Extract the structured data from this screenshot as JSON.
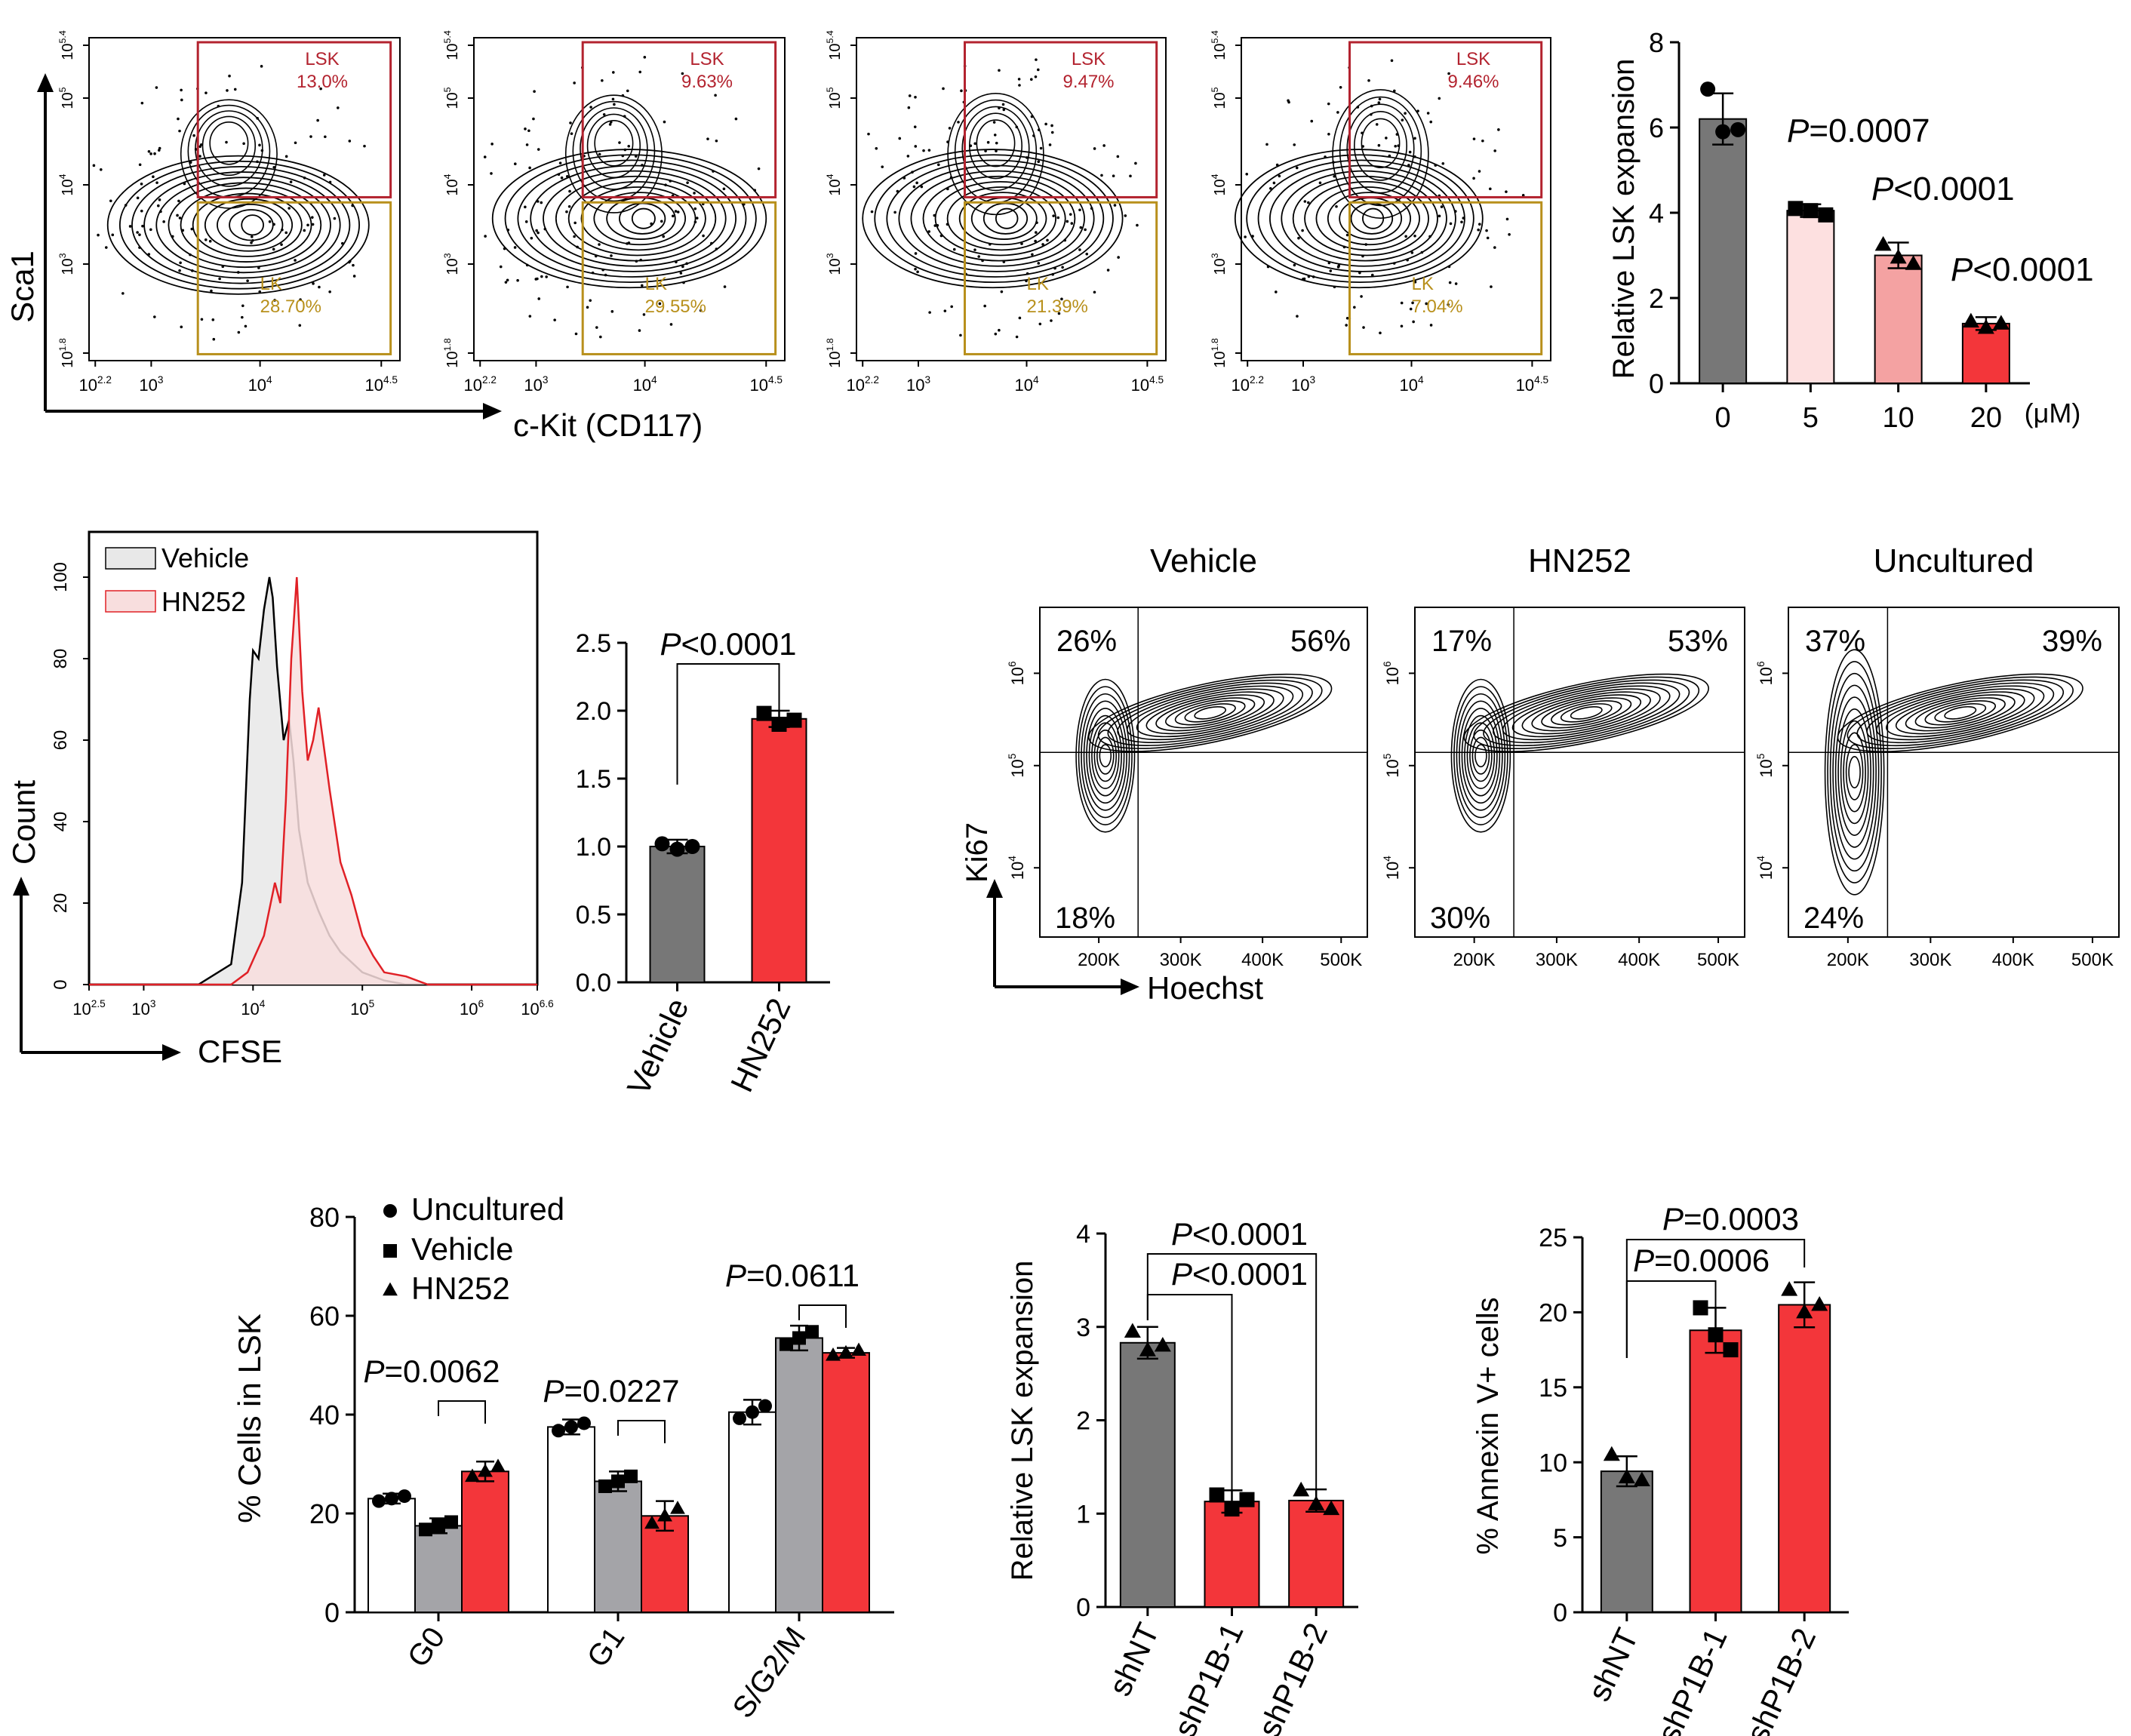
{
  "colors": {
    "lsk": "#b3232f",
    "lk": "#b8901c",
    "dark_grey": "#777777",
    "light_grey": "#a4a4a8",
    "pink_light": "#fde0e0",
    "pink_mid": "#f4a2a2",
    "red": "#f3363a",
    "hist_vehicle_fill": "#e8e8e8",
    "hist_hn252_fill": "#f8dede",
    "hist_hn252_line": "#e02026"
  },
  "flow_panels": {
    "y_axis": "Sca1",
    "x_axis": "c-Kit (CD117)",
    "y_ticks": [
      "10^5.4",
      "10^5",
      "10^4",
      "10^3",
      "10^1.8"
    ],
    "x_ticks": [
      "10^2.2",
      "10^3",
      "10^4",
      "10^4.5"
    ],
    "gate_lsk": "LSK",
    "gate_lk": "LK",
    "panels": [
      {
        "lsk": "13.0%",
        "lk": "28.70%"
      },
      {
        "lsk": "9.63%",
        "lk": "29.55%"
      },
      {
        "lsk": "9.47%",
        "lk": "21.39%"
      },
      {
        "lsk": "9.46%",
        "lk": "7.04%"
      }
    ]
  },
  "chart_data": [
    {
      "id": "lsk_dose",
      "type": "bar",
      "title": "",
      "ylabel": "Relative LSK expansion",
      "ylim": [
        0,
        8
      ],
      "yticks": [
        0,
        2,
        4,
        6,
        8
      ],
      "categories": [
        "0",
        "5",
        "10",
        "20"
      ],
      "unit_label": "(μM)",
      "values": [
        6.2,
        4.05,
        3.0,
        1.4
      ],
      "errors": [
        0.6,
        0.15,
        0.3,
        0.15
      ],
      "points": [
        [
          6.9,
          5.9,
          5.95
        ],
        [
          4.1,
          4.05,
          3.95
        ],
        [
          3.25,
          2.95,
          2.8
        ],
        [
          1.45,
          1.3,
          1.4
        ]
      ],
      "markers": [
        "circle",
        "square",
        "triangle",
        "triangle"
      ],
      "colors": [
        "#777777",
        "#fde0e0",
        "#f4a2a2",
        "#f3363a"
      ],
      "p_values": [
        "=0.0007",
        "<0.0001",
        "<0.0001"
      ],
      "p_letter": "P"
    },
    {
      "id": "cfse_hist",
      "type": "area",
      "ylabel": "Count",
      "xlabel": "CFSE",
      "ylim": [
        0,
        100
      ],
      "yticks": [
        0,
        20,
        40,
        60,
        80,
        100
      ],
      "xlim": [
        2.5,
        6.6
      ],
      "xtick_labels": [
        "10^2.5",
        "10^3",
        "10^4",
        "10^5",
        "10^6",
        "10^6.6"
      ],
      "legend": [
        "Vehicle",
        "HN252"
      ],
      "series": [
        {
          "name": "Vehicle",
          "x": [
            2.5,
            3.5,
            3.8,
            3.9,
            3.97,
            4.0,
            4.05,
            4.1,
            4.15,
            4.18,
            4.22,
            4.28,
            4.33,
            4.37,
            4.42,
            4.5,
            4.6,
            4.7,
            4.8,
            5.0,
            5.2,
            5.4,
            6.6
          ],
          "y": [
            0,
            0,
            5,
            25,
            70,
            82,
            80,
            92,
            100,
            95,
            78,
            60,
            65,
            55,
            38,
            25,
            18,
            12,
            8,
            3,
            1,
            0,
            0
          ]
        },
        {
          "name": "HN252",
          "x": [
            2.5,
            3.8,
            3.95,
            4.1,
            4.2,
            4.25,
            4.3,
            4.35,
            4.4,
            4.45,
            4.5,
            4.55,
            4.6,
            4.7,
            4.8,
            4.9,
            5.0,
            5.1,
            5.2,
            5.4,
            5.6,
            6.6
          ],
          "y": [
            0,
            0,
            3,
            12,
            25,
            20,
            45,
            80,
            100,
            72,
            55,
            60,
            68,
            48,
            30,
            22,
            12,
            7,
            3,
            2,
            0,
            0
          ]
        }
      ]
    },
    {
      "id": "cfse_ratio",
      "type": "bar",
      "ylim": [
        0,
        2.5
      ],
      "yticks": [
        "0.0",
        "0.5",
        "1.0",
        "1.5",
        "2.0",
        "2.5"
      ],
      "categories": [
        "Vehicle",
        "HN252"
      ],
      "values": [
        1.0,
        1.94
      ],
      "errors": [
        0.05,
        0.06
      ],
      "points": [
        [
          1.02,
          0.98,
          1.0
        ],
        [
          1.98,
          1.9,
          1.93
        ]
      ],
      "markers": [
        "circle",
        "square"
      ],
      "colors": [
        "#777777",
        "#f3363a"
      ],
      "p_values": [
        "<0.0001"
      ],
      "p_letter": "P"
    },
    {
      "id": "ki67_contours",
      "type": "scatter",
      "xlabel": "Hoechst",
      "ylabel": "Ki67",
      "xtick_labels": [
        "200K",
        "300K",
        "400K",
        "500K"
      ],
      "ytick_labels": [
        "10^6",
        "10^5",
        "10^4"
      ],
      "panels": [
        {
          "title": "Vehicle",
          "tl": "26%",
          "tr": "56%",
          "bl": "18%"
        },
        {
          "title": "HN252",
          "tl": "17%",
          "tr": "53%",
          "bl": "30%"
        },
        {
          "title": "Uncultured",
          "tl": "37%",
          "tr": "39%",
          "bl": "24%"
        }
      ]
    },
    {
      "id": "cell_cycle",
      "type": "bar",
      "ylabel": "% Cells in LSK",
      "ylim": [
        0,
        80
      ],
      "yticks": [
        0,
        20,
        40,
        60,
        80
      ],
      "categories": [
        "G0",
        "G1",
        "S/G2/M"
      ],
      "series": [
        {
          "name": "Uncultured",
          "marker": "circle",
          "color": "#ffffff",
          "values": [
            23,
            37.5,
            40.5
          ],
          "errors": [
            1.0,
            1.5,
            2.5
          ]
        },
        {
          "name": "Vehicle",
          "marker": "square",
          "color": "#a4a4a8",
          "values": [
            17.5,
            26.5,
            55.5
          ],
          "errors": [
            1.5,
            2.0,
            2.5
          ]
        },
        {
          "name": "HN252",
          "marker": "triangle",
          "color": "#f3363a",
          "values": [
            28.5,
            19.5,
            52.5
          ],
          "errors": [
            2.0,
            3.0,
            1.0
          ]
        }
      ],
      "p_values": [
        "=0.0062",
        "=0.0227",
        "=0.0611"
      ],
      "p_letter": "P"
    },
    {
      "id": "shp1b_lsk",
      "type": "bar",
      "ylabel": "Relative LSK expansion",
      "ylim": [
        0,
        4
      ],
      "yticks": [
        0,
        1,
        2,
        3,
        4
      ],
      "categories": [
        "shNT",
        "shP1B-1",
        "shP1B-2"
      ],
      "values": [
        2.83,
        1.13,
        1.14
      ],
      "errors": [
        0.17,
        0.12,
        0.12
      ],
      "points": [
        [
          2.95,
          2.75,
          2.8
        ],
        [
          1.2,
          1.05,
          1.15
        ],
        [
          1.25,
          1.1,
          1.05
        ]
      ],
      "markers": [
        "triangle",
        "square",
        "triangle"
      ],
      "colors": [
        "#777777",
        "#f3363a",
        "#f3363a"
      ],
      "p_values": [
        "<0.0001",
        "<0.0001"
      ],
      "p_letter": "P"
    },
    {
      "id": "annexin",
      "type": "bar",
      "ylabel": "% Annexin V+ cells",
      "ylim": [
        0,
        25
      ],
      "yticks": [
        0,
        5,
        10,
        15,
        20,
        25
      ],
      "categories": [
        "shNT",
        "shP1B-1",
        "shP1B-2"
      ],
      "values": [
        9.4,
        18.8,
        20.5
      ],
      "errors": [
        1.0,
        1.5,
        1.5
      ],
      "points": [
        [
          10.5,
          9.0,
          8.8
        ],
        [
          20.3,
          18.5,
          17.5
        ],
        [
          21.5,
          20.0,
          20.5
        ]
      ],
      "markers": [
        "triangle",
        "square",
        "triangle"
      ],
      "colors": [
        "#777777",
        "#f3363a",
        "#f3363a"
      ],
      "p_values": [
        "=0.0003",
        "=0.0006"
      ],
      "p_letter": "P"
    }
  ]
}
